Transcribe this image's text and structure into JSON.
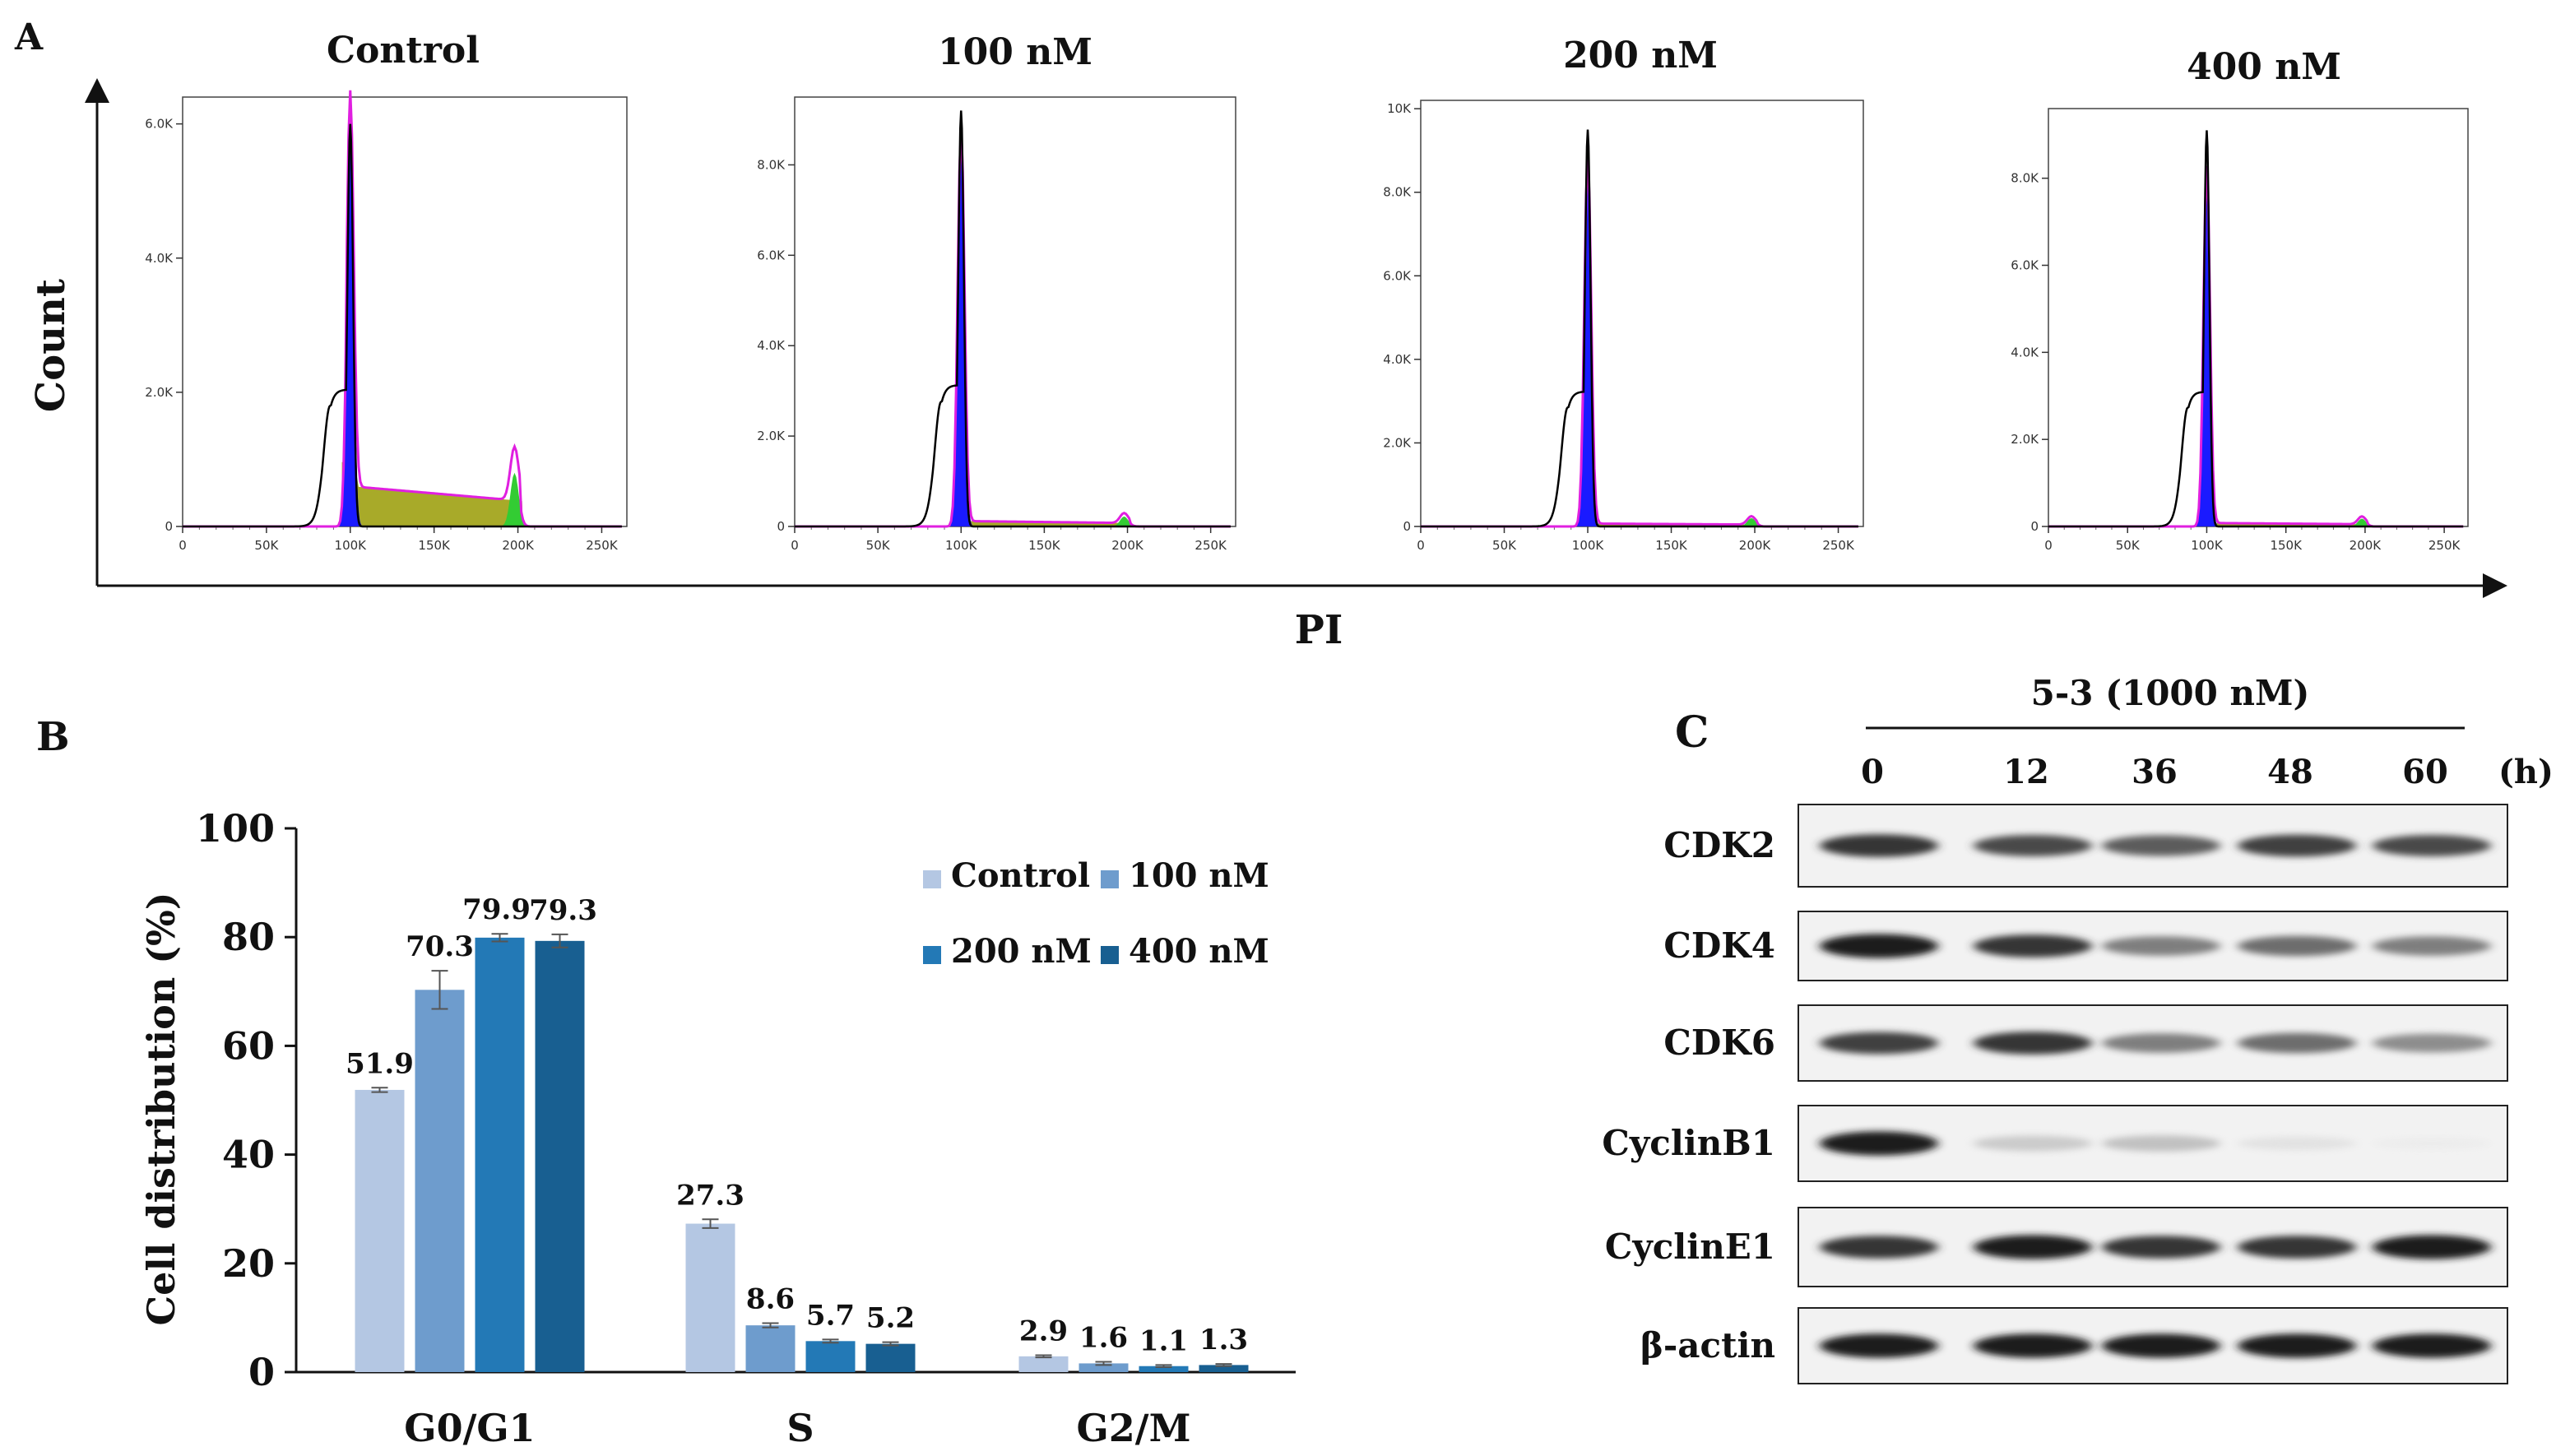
{
  "panels": {
    "A": {
      "label": "A",
      "ylabel": "Count",
      "xlabel": "PI",
      "histograms": [
        {
          "title": "Control",
          "yticks": [
            "0",
            "2.0K",
            "4.0K",
            "6.0K"
          ],
          "ymax": 6400,
          "peak": 6000,
          "g1": 5900,
          "s_plateau": 600,
          "g2_peak": 800
        },
        {
          "title": "100 nM",
          "yticks": [
            "0",
            "2.0K",
            "4.0K",
            "6.0K",
            "8.0K"
          ],
          "ymax": 9500,
          "peak": 9200,
          "g1": 8700,
          "s_plateau": 120,
          "g2_peak": 220
        },
        {
          "title": "200 nM",
          "yticks": [
            "0",
            "2.0K",
            "4.0K",
            "6.0K",
            "8.0K",
            "10K"
          ],
          "ymax": 10200,
          "peak": 9500,
          "g1": 8800,
          "s_plateau": 70,
          "g2_peak": 200
        },
        {
          "title": "400 nM",
          "yticks": [
            "0",
            "2.0K",
            "4.0K",
            "6.0K",
            "8.0K"
          ],
          "ymax": 9600,
          "peak": 9100,
          "g1": 8200,
          "s_plateau": 80,
          "g2_peak": 180
        }
      ],
      "xticks": [
        "0",
        "50K",
        "100K",
        "150K",
        "200K",
        "250K"
      ],
      "xmax": 265000
    },
    "B": {
      "label": "B"
    },
    "C": {
      "label": "C",
      "treatment": "5-3  (1000 nM)",
      "timepoints": [
        "0",
        "12",
        "36",
        "48",
        "60"
      ],
      "time_unit": "(h)",
      "proteins": [
        {
          "name": "CDK2",
          "intensity": [
            0.85,
            0.75,
            0.7,
            0.8,
            0.75
          ]
        },
        {
          "name": "CDK4",
          "intensity": [
            0.95,
            0.85,
            0.6,
            0.65,
            0.6
          ]
        },
        {
          "name": "CDK6",
          "intensity": [
            0.8,
            0.85,
            0.6,
            0.65,
            0.55
          ]
        },
        {
          "name": "CyclinB1",
          "intensity": [
            0.95,
            0.3,
            0.35,
            0.15,
            0.05
          ]
        },
        {
          "name": "CyclinE1",
          "intensity": [
            0.85,
            0.95,
            0.85,
            0.85,
            0.95
          ]
        },
        {
          "name": "β-actin",
          "intensity": [
            0.95,
            0.95,
            0.95,
            0.95,
            0.95
          ]
        }
      ]
    }
  },
  "chart_data": {
    "type": "bar",
    "title": "",
    "xlabel": "",
    "ylabel": "Cell distribution (%)",
    "ylim": [
      0,
      100
    ],
    "yticks": [
      "0",
      "20",
      "40",
      "60",
      "80",
      "100"
    ],
    "categories": [
      "G0/G1",
      "S",
      "G2/M"
    ],
    "series": [
      {
        "name": "Control",
        "color": "#b4c7e3",
        "values": [
          51.9,
          27.3,
          2.9
        ],
        "labels": [
          "51.9",
          "27.3",
          "2.9"
        ],
        "errors": [
          0.4,
          0.8,
          0.2
        ]
      },
      {
        "name": "100 nM",
        "color": "#6e9ccd",
        "values": [
          70.3,
          8.6,
          1.6
        ],
        "labels": [
          "70.3",
          "8.6",
          "1.6"
        ],
        "errors": [
          3.5,
          0.4,
          0.3
        ]
      },
      {
        "name": "200 nM",
        "color": "#2379b6",
        "values": [
          79.9,
          5.7,
          1.1
        ],
        "labels": [
          "79.9",
          "5.7",
          "1.1"
        ],
        "errors": [
          0.7,
          0.3,
          0.2
        ]
      },
      {
        "name": "400 nM",
        "color": "#185f91",
        "values": [
          79.3,
          5.2,
          1.3
        ],
        "labels": [
          "79.3",
          "5.2",
          "1.3"
        ],
        "errors": [
          1.2,
          0.3,
          0.2
        ]
      }
    ]
  }
}
